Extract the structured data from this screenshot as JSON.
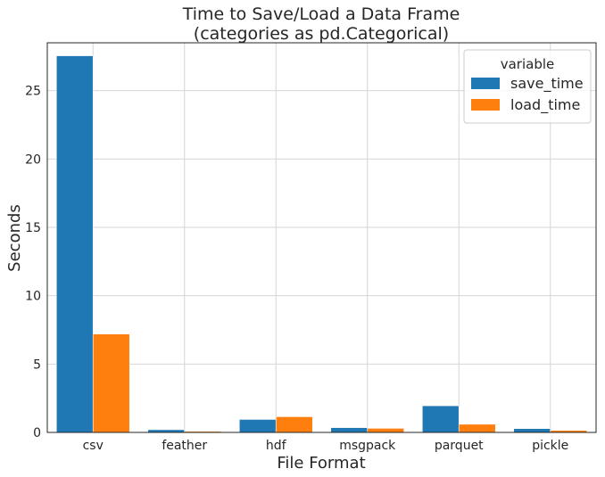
{
  "chart_data": {
    "type": "bar",
    "title": "Time to Save/Load a Data Frame",
    "subtitle": "(categories as pd.Categorical)",
    "xlabel": "File Format",
    "ylabel": "Seconds",
    "categories": [
      "csv",
      "feather",
      "hdf",
      "msgpack",
      "parquet",
      "pickle"
    ],
    "series": [
      {
        "name": "save_time",
        "color": "#1f77b4",
        "values": [
          27.55,
          0.2,
          0.95,
          0.35,
          1.95,
          0.28
        ]
      },
      {
        "name": "load_time",
        "color": "#ff7f0e",
        "values": [
          7.2,
          0.08,
          1.15,
          0.3,
          0.6,
          0.15
        ]
      }
    ],
    "ylim": [
      0,
      28.5
    ],
    "yticks": [
      0,
      5,
      10,
      15,
      20,
      25
    ],
    "grid": true,
    "legend": {
      "title": "variable",
      "position": "top-right"
    }
  }
}
